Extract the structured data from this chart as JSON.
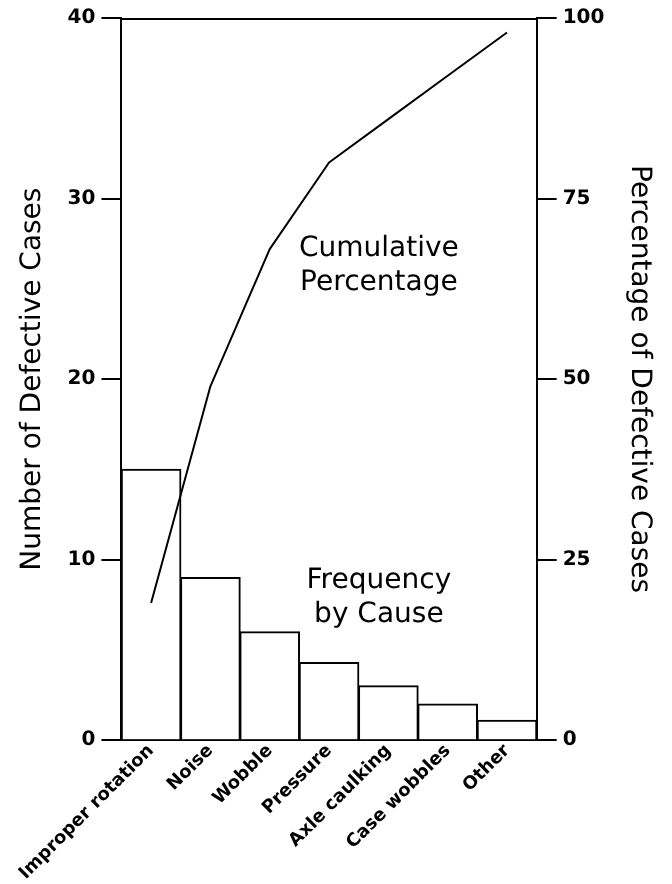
{
  "chart_data": {
    "type": "bar",
    "categories": [
      "Improper rotation",
      "Noise",
      "Wobble",
      "Pressure",
      "Axle caulking",
      "Case wobbles",
      "Other"
    ],
    "series": [
      {
        "color": "#ffffff",
        "values": [
          15,
          9,
          6,
          4.3,
          3,
          2,
          1.1
        ]
      },
      {
        "type": "line",
        "axis": "y2",
        "color": "#000000",
        "values": [
          19,
          49,
          68,
          80,
          86,
          92,
          98
        ]
      }
    ],
    "ylabel": "Number of Defective Cases",
    "y2label": "Percentage of Defective Cases",
    "ylim": [
      0,
      40
    ],
    "yticks": [
      0,
      10,
      20,
      30,
      40
    ],
    "y2lim": [
      0,
      100
    ],
    "y2ticks": [
      0,
      25,
      50,
      75,
      100
    ],
    "annotations": [
      "Cumulative Percentage",
      "Frequency by Cause"
    ],
    "grid": false,
    "legend": false,
    "marker": "none",
    "line_style": "solid"
  }
}
